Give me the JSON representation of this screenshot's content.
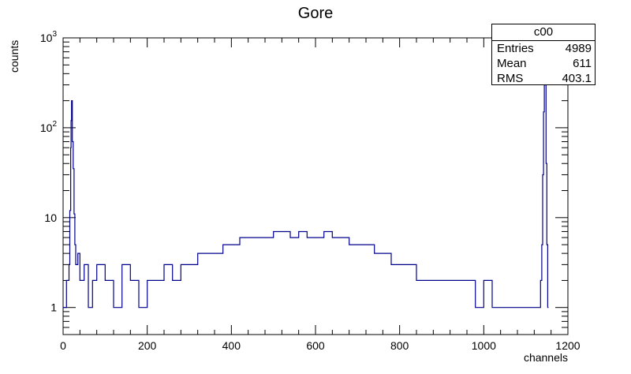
{
  "chart_data": {
    "type": "line",
    "title": "Gore",
    "xlabel": "channels",
    "ylabel": "counts",
    "xlim": [
      0,
      1200
    ],
    "ylim": [
      0.5,
      1000
    ],
    "yscale": "log",
    "x_ticks": [
      "0",
      "200",
      "400",
      "600",
      "800",
      "1000",
      "1200"
    ],
    "y_ticks": [
      {
        "value": 1,
        "base": "1",
        "exp": ""
      },
      {
        "value": 10,
        "base": "10",
        "exp": ""
      },
      {
        "value": 100,
        "base": "10",
        "exp": "2"
      },
      {
        "value": 1000,
        "base": "10",
        "exp": "3"
      }
    ],
    "line_color": "#00008b",
    "series": [
      {
        "points": [
          [
            0,
            1
          ],
          [
            8,
            2
          ],
          [
            14,
            3
          ],
          [
            16,
            12
          ],
          [
            18,
            60
          ],
          [
            19,
            120
          ],
          [
            20,
            200
          ],
          [
            22,
            70
          ],
          [
            24,
            35
          ],
          [
            26,
            11
          ],
          [
            28,
            5
          ],
          [
            30,
            3
          ],
          [
            35,
            4
          ],
          [
            40,
            2
          ],
          [
            50,
            3
          ],
          [
            60,
            1
          ],
          [
            70,
            2
          ],
          [
            80,
            3
          ],
          [
            100,
            2
          ],
          [
            120,
            1
          ],
          [
            140,
            3
          ],
          [
            160,
            2
          ],
          [
            180,
            1
          ],
          [
            200,
            2
          ],
          [
            220,
            2
          ],
          [
            240,
            3
          ],
          [
            260,
            2
          ],
          [
            280,
            3
          ],
          [
            300,
            3
          ],
          [
            320,
            4
          ],
          [
            340,
            4
          ],
          [
            360,
            4
          ],
          [
            380,
            5
          ],
          [
            400,
            5
          ],
          [
            420,
            6
          ],
          [
            440,
            6
          ],
          [
            460,
            6
          ],
          [
            480,
            6
          ],
          [
            500,
            7
          ],
          [
            520,
            7
          ],
          [
            540,
            6
          ],
          [
            560,
            7
          ],
          [
            580,
            6
          ],
          [
            600,
            6
          ],
          [
            620,
            7
          ],
          [
            640,
            6
          ],
          [
            660,
            6
          ],
          [
            680,
            5
          ],
          [
            700,
            5
          ],
          [
            720,
            5
          ],
          [
            740,
            4
          ],
          [
            760,
            4
          ],
          [
            780,
            3
          ],
          [
            800,
            3
          ],
          [
            820,
            3
          ],
          [
            840,
            2
          ],
          [
            860,
            2
          ],
          [
            880,
            2
          ],
          [
            900,
            2
          ],
          [
            920,
            2
          ],
          [
            940,
            2
          ],
          [
            960,
            2
          ],
          [
            980,
            1
          ],
          [
            1000,
            2
          ],
          [
            1020,
            1
          ],
          [
            1040,
            1
          ],
          [
            1060,
            1
          ],
          [
            1080,
            1
          ],
          [
            1100,
            1
          ],
          [
            1120,
            1
          ],
          [
            1135,
            2
          ],
          [
            1138,
            5
          ],
          [
            1140,
            30
          ],
          [
            1142,
            150
          ],
          [
            1144,
            700
          ],
          [
            1146,
            300
          ],
          [
            1148,
            40
          ],
          [
            1150,
            5
          ],
          [
            1152,
            1
          ]
        ]
      }
    ]
  },
  "stats": {
    "title": "c00",
    "entries_label": "Entries",
    "entries_value": "4989",
    "mean_label": "Mean",
    "mean_value": "611",
    "rms_label": "RMS",
    "rms_value": "403.1"
  }
}
